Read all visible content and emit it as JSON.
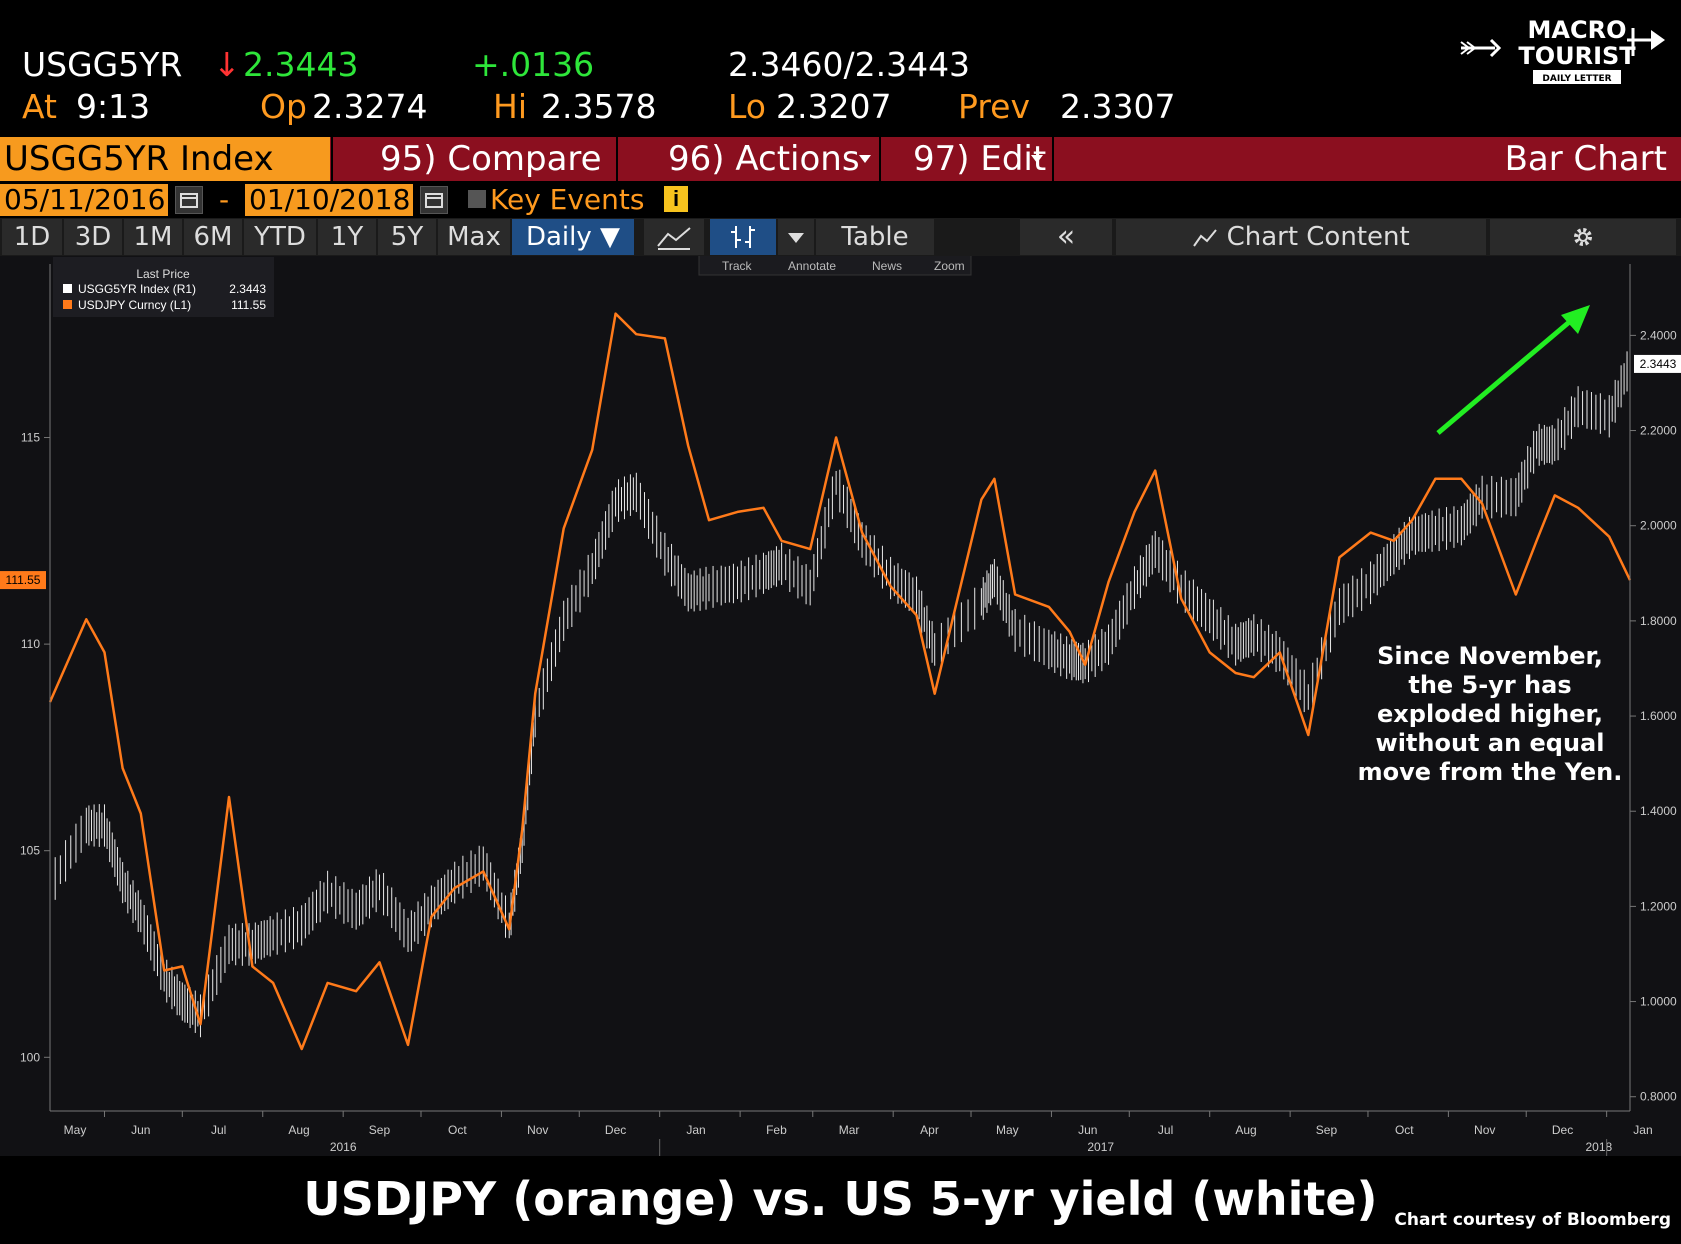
{
  "header": {
    "ticker": "USGG5YR",
    "arrow": "↓",
    "last": "2.3443",
    "change": "+.0136",
    "bid_ask": "2.3460/2.3443",
    "at_label": "At",
    "at_time": "9:13",
    "op_label": "Op",
    "op_value": "2.3274",
    "hi_label": "Hi",
    "hi_value": "2.3578",
    "lo_label": "Lo",
    "lo_value": "2.3207",
    "prev_label": "Prev",
    "prev_value": "2.3307"
  },
  "logo": {
    "line1": "MACRO",
    "line2": "TOURIST",
    "line3": "DAILY LETTER"
  },
  "menu": {
    "security": "USGG5YR Index",
    "compare": "95) Compare",
    "actions": "96) Actions",
    "edit": "97) Edit",
    "chart_type": "Bar Chart"
  },
  "dates": {
    "start": "05/11/2016",
    "dash": "-",
    "end": "01/10/2018",
    "key_events": "Key Events"
  },
  "toolbar": {
    "periods": [
      "1D",
      "3D",
      "1M",
      "6M",
      "YTD",
      "1Y",
      "5Y",
      "Max"
    ],
    "frequency": "Daily ▼",
    "table": "Table",
    "collapse": "«",
    "chart_content": "Chart Content"
  },
  "chart_tools": [
    "Track",
    "Annotate",
    "News",
    "Zoom"
  ],
  "legend": {
    "title": "Last Price",
    "items": [
      {
        "label": "USGG5YR Index  (R1)",
        "value": "2.3443",
        "color": "#ffffff"
      },
      {
        "label": "USDJPY Curncy  (L1)",
        "value": "111.55",
        "color": "#ff7a1a"
      }
    ]
  },
  "annotation": [
    "Since November,",
    "the 5-yr has",
    "exploded higher,",
    "without an equal",
    "move from the Yen."
  ],
  "caption": "USDJPY (orange) vs. US 5-yr yield (white)",
  "credit": "Chart courtesy of Bloomberg",
  "chart_data": {
    "type": "line",
    "x_axis": {
      "months": [
        "May",
        "Jun",
        "Jul",
        "Aug",
        "Sep",
        "Oct",
        "Nov",
        "Dec",
        "Jan",
        "Feb",
        "Mar",
        "Apr",
        "May",
        "Jun",
        "Jul",
        "Aug",
        "Sep",
        "Oct",
        "Nov",
        "Dec",
        "Jan"
      ],
      "years": [
        "2016",
        "2017",
        "2018"
      ],
      "range": [
        "2016-05-11",
        "2018-01-10"
      ]
    },
    "left_axis": {
      "ticks": [
        "100",
        "105",
        "110",
        "115"
      ],
      "ylim": [
        98.7,
        119.2
      ],
      "last_label": "111.55"
    },
    "right_axis": {
      "ticks": [
        "0.8000",
        "1.0000",
        "1.2000",
        "1.4000",
        "1.6000",
        "1.8000",
        "2.0000",
        "2.2000",
        "2.4000"
      ],
      "ylim": [
        0.77,
        2.55
      ],
      "last_label": "2.3443"
    },
    "series": [
      {
        "name": "USDJPY Curncy",
        "color": "#ff7a1a",
        "axis": "left",
        "x": [
          "2016-05-11",
          "2016-05-25",
          "2016-06-01",
          "2016-06-08",
          "2016-06-15",
          "2016-06-24",
          "2016-07-01",
          "2016-07-08",
          "2016-07-19",
          "2016-07-28",
          "2016-08-05",
          "2016-08-16",
          "2016-08-26",
          "2016-09-06",
          "2016-09-15",
          "2016-09-26",
          "2016-10-05",
          "2016-10-14",
          "2016-10-25",
          "2016-11-04",
          "2016-11-09",
          "2016-11-14",
          "2016-11-25",
          "2016-12-06",
          "2016-12-15",
          "2016-12-23",
          "2017-01-03",
          "2017-01-12",
          "2017-01-20",
          "2017-01-31",
          "2017-02-10",
          "2017-02-17",
          "2017-02-28",
          "2017-03-10",
          "2017-03-20",
          "2017-03-31",
          "2017-04-10",
          "2017-04-17",
          "2017-05-05",
          "2017-05-10",
          "2017-05-18",
          "2017-05-31",
          "2017-06-08",
          "2017-06-14",
          "2017-06-23",
          "2017-07-03",
          "2017-07-11",
          "2017-07-21",
          "2017-08-01",
          "2017-08-11",
          "2017-08-18",
          "2017-08-28",
          "2017-09-08",
          "2017-09-20",
          "2017-10-02",
          "2017-10-11",
          "2017-10-18",
          "2017-10-27",
          "2017-11-06",
          "2017-11-14",
          "2017-11-27",
          "2017-12-05",
          "2017-12-12",
          "2017-12-21",
          "2018-01-02",
          "2018-01-10"
        ],
        "y": [
          108.6,
          110.6,
          109.8,
          107.0,
          105.9,
          102.1,
          102.2,
          100.8,
          106.3,
          102.2,
          101.8,
          100.2,
          101.8,
          101.6,
          102.3,
          100.3,
          103.4,
          104.1,
          104.5,
          103.1,
          105.5,
          108.8,
          112.8,
          114.7,
          118.0,
          117.5,
          117.4,
          114.8,
          113.0,
          113.2,
          113.3,
          112.5,
          112.3,
          115.0,
          112.7,
          111.4,
          110.7,
          108.8,
          113.5,
          114.0,
          111.2,
          110.9,
          110.3,
          109.5,
          111.5,
          113.2,
          114.2,
          111.1,
          109.8,
          109.3,
          109.2,
          109.8,
          107.8,
          112.1,
          112.7,
          112.5,
          113.0,
          114.0,
          114.0,
          113.4,
          111.2,
          112.5,
          113.6,
          113.3,
          112.6,
          111.55
        ]
      },
      {
        "name": "USGG5YR Index",
        "color": "#ffffff",
        "axis": "right",
        "x": [
          "2016-05-11",
          "2016-05-25",
          "2016-06-01",
          "2016-06-08",
          "2016-06-15",
          "2016-06-24",
          "2016-07-01",
          "2016-07-08",
          "2016-07-19",
          "2016-07-28",
          "2016-08-05",
          "2016-08-16",
          "2016-08-26",
          "2016-09-06",
          "2016-09-15",
          "2016-09-26",
          "2016-10-05",
          "2016-10-14",
          "2016-10-25",
          "2016-11-04",
          "2016-11-09",
          "2016-11-14",
          "2016-11-25",
          "2016-12-06",
          "2016-12-15",
          "2016-12-23",
          "2017-01-03",
          "2017-01-12",
          "2017-01-20",
          "2017-01-31",
          "2017-02-10",
          "2017-02-17",
          "2017-02-28",
          "2017-03-10",
          "2017-03-20",
          "2017-03-31",
          "2017-04-10",
          "2017-04-17",
          "2017-05-05",
          "2017-05-10",
          "2017-05-18",
          "2017-05-31",
          "2017-06-08",
          "2017-06-14",
          "2017-06-23",
          "2017-07-03",
          "2017-07-11",
          "2017-07-21",
          "2017-08-01",
          "2017-08-11",
          "2017-08-18",
          "2017-08-28",
          "2017-09-08",
          "2017-09-20",
          "2017-10-02",
          "2017-10-11",
          "2017-10-18",
          "2017-10-27",
          "2017-11-06",
          "2017-11-14",
          "2017-11-27",
          "2017-12-05",
          "2017-12-12",
          "2017-12-21",
          "2018-01-02",
          "2018-01-10"
        ],
        "y": [
          1.24,
          1.37,
          1.37,
          1.25,
          1.18,
          1.05,
          1.0,
          0.97,
          1.12,
          1.12,
          1.14,
          1.16,
          1.23,
          1.19,
          1.24,
          1.14,
          1.2,
          1.25,
          1.29,
          1.16,
          1.33,
          1.6,
          1.8,
          1.91,
          2.05,
          2.07,
          1.94,
          1.86,
          1.87,
          1.88,
          1.9,
          1.92,
          1.87,
          2.09,
          1.97,
          1.89,
          1.85,
          1.74,
          1.84,
          1.89,
          1.78,
          1.74,
          1.72,
          1.71,
          1.75,
          1.87,
          1.95,
          1.87,
          1.81,
          1.75,
          1.77,
          1.73,
          1.64,
          1.83,
          1.88,
          1.94,
          1.98,
          1.99,
          2.0,
          2.06,
          2.06,
          2.17,
          2.17,
          2.25,
          2.23,
          2.34
        ]
      }
    ]
  }
}
